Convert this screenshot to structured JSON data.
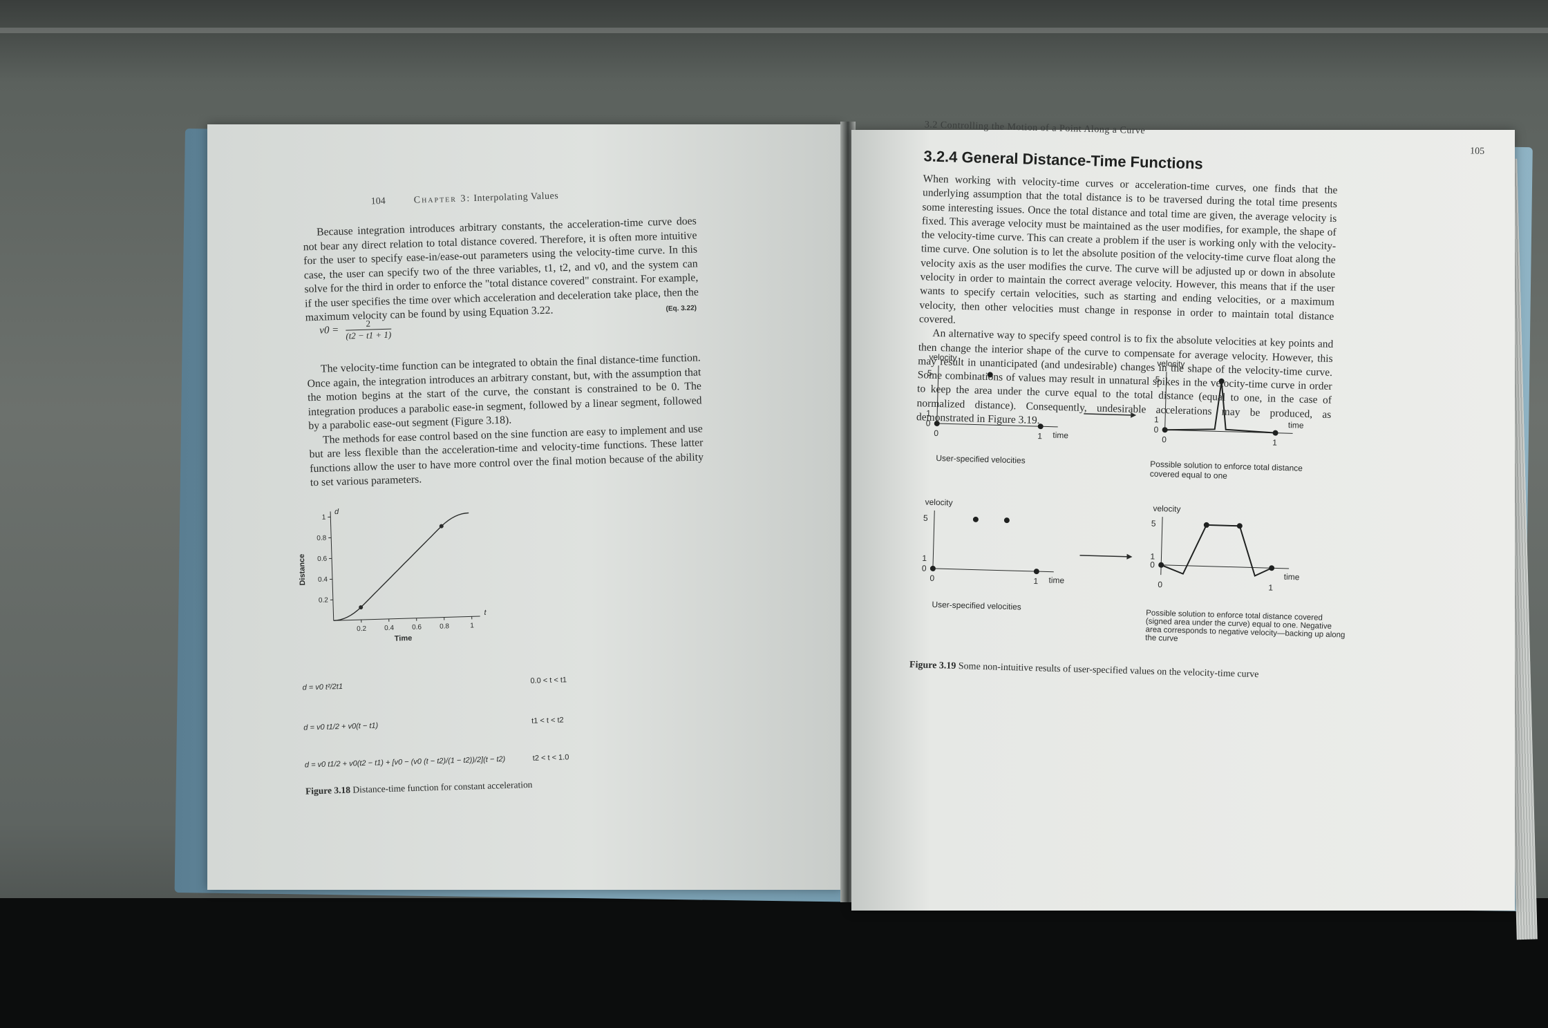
{
  "left_page": {
    "folio": "104",
    "running_head_caps": "Chapter 3:",
    "running_head_title": "Interpolating Values",
    "para1": "Because integration introduces arbitrary constants, the acceleration-time curve does not bear any direct relation to total distance covered. Therefore, it is often more intuitive for the user to specify ease-in/ease-out parameters using the velocity-time curve. In this case, the user can specify two of the three variables, t1, t2, and v0, and the system can solve for the third in order to enforce the \"total distance covered\" constraint. For example, if the user specifies the time over which acceleration and deceleration take place, then the maximum velocity can be found by using Equation 3.22.",
    "eq_label": "(Eq. 3.22)",
    "eq_lhs": "v0 =",
    "eq_num": "2",
    "eq_den": "(t2 − t1 + 1)",
    "para2": "The velocity-time function can be integrated to obtain the final distance-time function. Once again, the integration introduces an arbitrary constant, but, with the assumption that the motion begins at the start of the curve, the constant is constrained to be 0. The integration produces a parabolic ease-in segment, followed by a linear segment, followed by a parabolic ease-out segment (Figure 3.18).",
    "para3": "The methods for ease control based on the sine function are easy to implement and use but are less flexible than the acceleration-time and velocity-time functions. These latter functions allow the user to have more control over the final motion because of the ability to set various parameters.",
    "formulas": [
      {
        "expr": "d = v0 t²/2t1",
        "cond": "0.0 < t < t1"
      },
      {
        "expr": "d = v0 t1/2 + v0(t − t1)",
        "cond": "t1 < t < t2"
      },
      {
        "expr": "d = v0 t1/2 + v0(t2 − t1) + [v0 − (v0 (t − t2)/(1 − t2))/2](t − t2)",
        "cond": "t2 < t < 1.0"
      }
    ],
    "figure_label": "Figure 3.18",
    "figure_caption": "Distance-time function for constant acceleration"
  },
  "right_page": {
    "folio": "105",
    "running_head": "3.2 Controlling the Motion of a Point Along a Curve",
    "section_title": "3.2.4 General Distance-Time Functions",
    "para1": "When working with velocity-time curves or acceleration-time curves, one finds that the underlying assumption that the total distance is to be traversed during the total time presents some interesting issues. Once the total distance and total time are given, the average velocity is fixed. This average velocity must be maintained as the user modifies, for example, the shape of the velocity-time curve. This can create a problem if the user is working only with the velocity-time curve. One solution is to let the absolute position of the velocity-time curve float along the velocity axis as the user modifies the curve. The curve will be adjusted up or down in absolute velocity in order to maintain the correct average velocity. However, this means that if the user wants to specify certain velocities, such as starting and ending velocities, or a maximum velocity, then other velocities must change in response in order to maintain total distance covered.",
    "para2": "An alternative way to specify speed control is to fix the absolute velocities at key points and then change the interior shape of the curve to compensate for average velocity. However, this may result in unanticipated (and undesirable) changes in the shape of the velocity-time curve. Some combinations of values may result in unnatural spikes in the velocity-time curve in order to keep the area under the curve equal to the total distance (equal to one, in the case of normalized distance). Consequently, undesirable accelerations may be produced, as demonstrated in Figure 3.19.",
    "figure_label": "Figure 3.19",
    "figure_caption": "Some non-intuitive results of user-specified values on the velocity-time curve",
    "top_left_caption": "User-specified velocities",
    "top_right_caption": "Possible solution to enforce total distance covered equal to one",
    "bottom_left_caption": "User-specified velocities",
    "bottom_right_caption": "Possible solution to enforce total distance covered (signed area under the curve) equal to one. Negative area corresponds to negative velocity—backing up along the curve"
  },
  "chart_data": [
    {
      "type": "line",
      "title": "",
      "xlabel": "Time",
      "ylabel": "Distance",
      "x_axis_letter": "t",
      "y_axis_letter": "d",
      "xlim": [
        0,
        1
      ],
      "ylim": [
        0,
        1
      ],
      "x_ticks": [
        "0.2",
        "0.4",
        "0.6",
        "0.8",
        "1"
      ],
      "y_ticks": [
        "0.2",
        "0.4",
        "0.6",
        "0.8",
        "1"
      ],
      "series": [
        {
          "x": [
            0,
            0.1,
            0.2,
            0.5,
            0.8,
            0.9,
            1.0
          ],
          "y": [
            0,
            0.03,
            0.12,
            0.5,
            0.88,
            0.97,
            1.0
          ]
        }
      ],
      "marked_points": [
        {
          "x": 0.2,
          "y": 0.12
        },
        {
          "x": 0.8,
          "y": 0.88
        }
      ]
    },
    {
      "type": "scatter",
      "xlabel": "time",
      "ylabel": "velocity",
      "x_ticks": [
        "0",
        "1"
      ],
      "y_ticks": [
        "0",
        "1",
        "5"
      ],
      "points": [
        {
          "x": 0,
          "y": 0
        },
        {
          "x": 0.5,
          "y": 5
        },
        {
          "x": 1,
          "y": 0
        }
      ]
    },
    {
      "type": "line",
      "xlabel": "time",
      "ylabel": "velocity",
      "x_ticks": [
        "0",
        "1"
      ],
      "y_ticks": [
        "0",
        "1",
        "5"
      ],
      "series": [
        {
          "x": [
            0,
            0.45,
            0.5,
            0.55,
            1
          ],
          "y": [
            0,
            0.2,
            5,
            0.2,
            0
          ]
        }
      ]
    },
    {
      "type": "scatter",
      "xlabel": "time",
      "ylabel": "velocity",
      "x_ticks": [
        "0",
        "1"
      ],
      "y_ticks": [
        "0",
        "1",
        "5"
      ],
      "points": [
        {
          "x": 0,
          "y": 0
        },
        {
          "x": 0.4,
          "y": 5
        },
        {
          "x": 0.7,
          "y": 5
        },
        {
          "x": 1,
          "y": 0
        }
      ]
    },
    {
      "type": "line",
      "xlabel": "time",
      "ylabel": "velocity",
      "x_ticks": [
        "0",
        "1"
      ],
      "y_ticks": [
        "0",
        "1",
        "5"
      ],
      "series": [
        {
          "x": [
            0,
            0.2,
            0.4,
            0.7,
            0.85,
            1
          ],
          "y": [
            0,
            -1,
            5,
            5,
            -1,
            0
          ]
        }
      ]
    }
  ]
}
